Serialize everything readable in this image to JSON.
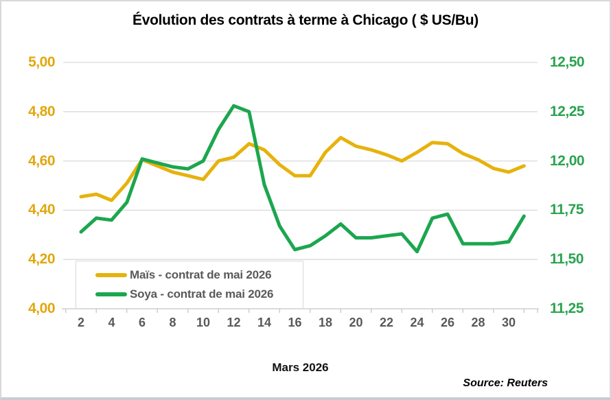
{
  "chart_data": {
    "type": "line",
    "title": "Évolution des contrats à terme à Chicago ( $ US/Bu)",
    "xlabel": "Mars 2026",
    "source": "Source: Reuters",
    "x_days": [
      2,
      3,
      4,
      5,
      6,
      7,
      8,
      9,
      10,
      11,
      12,
      13,
      14,
      15,
      16,
      17,
      18,
      19,
      20,
      21,
      22,
      23,
      24,
      25,
      26,
      27,
      28,
      29,
      30,
      31
    ],
    "x_tick_values": [
      2,
      4,
      6,
      8,
      10,
      12,
      14,
      16,
      18,
      20,
      22,
      24,
      26,
      28,
      30
    ],
    "x_tick_labels": [
      "2",
      "4",
      "6",
      "8",
      "10",
      "12",
      "14",
      "16",
      "18",
      "20",
      "22",
      "24",
      "26",
      "28",
      "30"
    ],
    "left_axis": {
      "min": 4.0,
      "max": 5.0,
      "tick_values": [
        5.0,
        4.8,
        4.6,
        4.4,
        4.2,
        4.0
      ],
      "tick_labels": [
        "5,00",
        "4,80",
        "4,60",
        "4,40",
        "4,20",
        "4,00"
      ],
      "label_color": "#e2a70e"
    },
    "right_axis": {
      "min": 11.25,
      "max": 12.5,
      "tick_values": [
        12.5,
        12.25,
        12.0,
        11.75,
        11.5,
        11.25
      ],
      "tick_labels": [
        "12,50",
        "12,25",
        "12,00",
        "11,75",
        "11,50",
        "11,25"
      ],
      "label_color": "#29a34e"
    },
    "series": [
      {
        "name": "Maïs - contrat de mai 2026",
        "axis": "left",
        "color": "#e6b20c",
        "values": [
          4.455,
          4.465,
          4.44,
          4.51,
          4.605,
          4.58,
          4.555,
          4.54,
          4.525,
          4.6,
          4.615,
          4.67,
          4.645,
          4.585,
          4.54,
          4.54,
          4.635,
          4.695,
          4.66,
          4.645,
          4.625,
          4.6,
          4.635,
          4.675,
          4.67,
          4.63,
          4.605,
          4.57,
          4.555,
          4.58
        ]
      },
      {
        "name": "Soya - contrat de mai 2026",
        "axis": "right",
        "color": "#1ca64f",
        "values": [
          11.64,
          11.71,
          11.7,
          11.79,
          12.01,
          11.99,
          11.97,
          11.96,
          12.0,
          12.16,
          12.28,
          12.25,
          11.88,
          11.67,
          11.55,
          11.57,
          11.62,
          11.68,
          11.61,
          11.61,
          11.62,
          11.63,
          11.54,
          11.71,
          11.73,
          11.58,
          11.58,
          11.58,
          11.59,
          11.72
        ]
      }
    ],
    "grid_color": "#d9d9d9",
    "axis_line_color": "#c6c6c6",
    "legend_position": "bottom-left-inside"
  }
}
